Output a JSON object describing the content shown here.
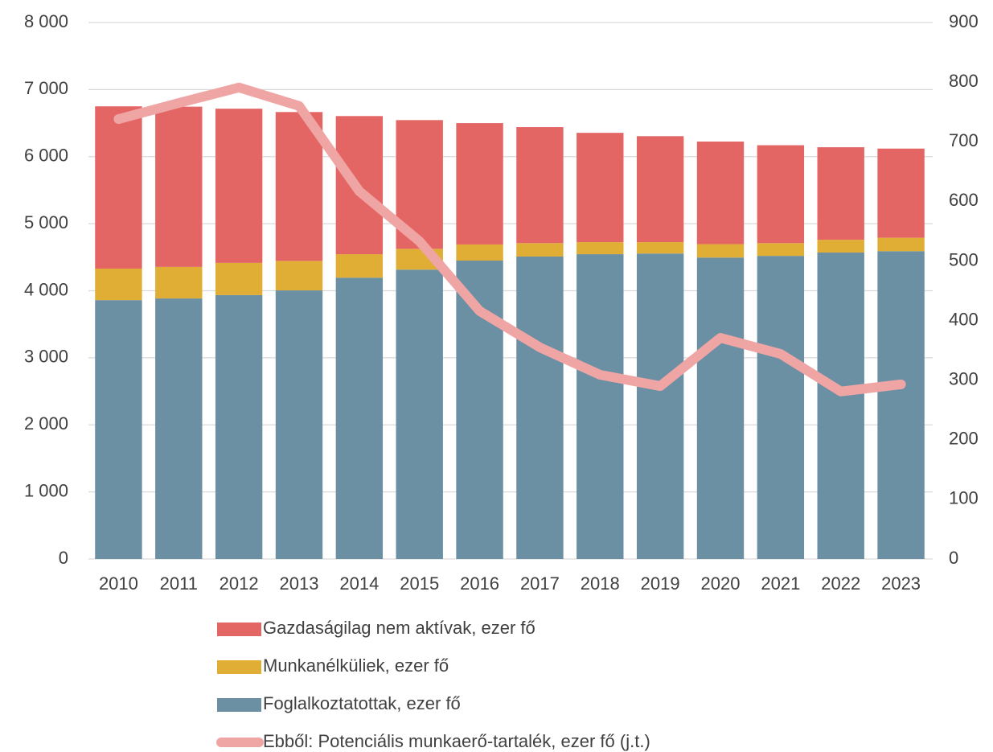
{
  "chart_data": {
    "type": "bar",
    "stacked": true,
    "categories": [
      "2010",
      "2011",
      "2012",
      "2013",
      "2014",
      "2015",
      "2016",
      "2017",
      "2018",
      "2019",
      "2020",
      "2021",
      "2022",
      "2023"
    ],
    "series": [
      {
        "name": "Foglalkoztatottak, ezer fő",
        "color": "#6b8fa3",
        "values": [
          3860,
          3885,
          3935,
          4005,
          4195,
          4315,
          4450,
          4510,
          4545,
          4555,
          4495,
          4520,
          4570,
          4590
        ]
      },
      {
        "name": "Munkanélküliek, ezer fő",
        "color": "#e0ad35",
        "values": [
          470,
          470,
          480,
          440,
          350,
          310,
          240,
          200,
          180,
          170,
          200,
          190,
          190,
          200
        ]
      },
      {
        "name": "Gazdaságilag nem aktívak, ezer fő",
        "color": "#e36664",
        "values": [
          2420,
          2390,
          2300,
          2220,
          2060,
          1920,
          1810,
          1730,
          1630,
          1580,
          1530,
          1460,
          1380,
          1330
        ]
      },
      {
        "name": "Ebből: Potenciális munkaerő-tartalék, ezer fő (j.t.)",
        "color": "#f0a5a5",
        "type": "line",
        "axis": "y2",
        "values": [
          738,
          765,
          791,
          760,
          617,
          533,
          416,
          355,
          309,
          290,
          371,
          344,
          281,
          293
        ]
      }
    ],
    "ylim": [
      0,
      8000
    ],
    "yticks": [
      {
        "value": 0,
        "label": "0"
      },
      {
        "value": 1000,
        "label": "1 000"
      },
      {
        "value": 2000,
        "label": "2 000"
      },
      {
        "value": 3000,
        "label": "3 000"
      },
      {
        "value": 4000,
        "label": "4 000"
      },
      {
        "value": 5000,
        "label": "5 000"
      },
      {
        "value": 6000,
        "label": "6 000"
      },
      {
        "value": 7000,
        "label": "7 000"
      },
      {
        "value": 8000,
        "label": "8 000"
      }
    ],
    "y2lim": [
      0,
      900
    ],
    "y2ticks": [
      0,
      100,
      200,
      300,
      400,
      500,
      600,
      700,
      800,
      900
    ],
    "grid": true,
    "legend": "bottom"
  }
}
